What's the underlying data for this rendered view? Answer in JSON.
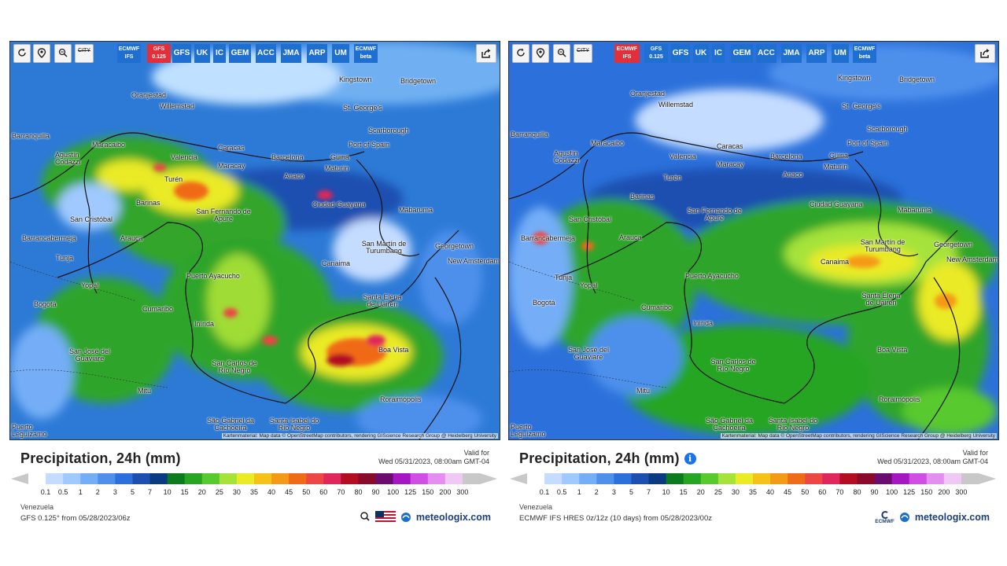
{
  "toolbar": {
    "city_label": "CITY",
    "models": [
      "ECMWF IFS",
      "GFS 0.125",
      "GFS",
      "UK",
      "IC",
      "GEM",
      "ACC",
      "JMA",
      "ARP",
      "UM",
      "ECMWF beta"
    ]
  },
  "panels": [
    {
      "active_model": "GFS 0.125",
      "title": "Precipitation, 24h (mm)",
      "valid_label": "Valid for",
      "valid_time": "Wed 05/31/2023, 08:00am GMT-04",
      "region": "Venezuela",
      "source": "GFS 0.125° from 05/28/2023/06z",
      "attribution": "Kartenmaterial: Map data © OpenStreetMap contributors, rendering GIScience Research Group @ Heidelberg University",
      "brand": "meteologix.com"
    },
    {
      "active_model": "ECMWF IFS",
      "title": "Precipitation, 24h (mm)",
      "valid_label": "Valid for",
      "valid_time": "Wed 05/31/2023, 08:00am GMT-04",
      "region": "Venezuela",
      "source": "ECMWF IFS HRES 0z/12z (10 days) from 05/28/2023/00z",
      "attribution": "Kartenmaterial: Map data © OpenStreetMap contributors, rendering GIScience Research Group @ Heidelberg University",
      "brand": "meteologix.com",
      "ecmwf_logo": "ECMWF"
    }
  ],
  "legend": {
    "ticks": [
      "0.1",
      "0.5",
      "1",
      "2",
      "3",
      "5",
      "7",
      "10",
      "15",
      "20",
      "25",
      "30",
      "35",
      "40",
      "45",
      "50",
      "60",
      "70",
      "80",
      "90",
      "100",
      "125",
      "150",
      "200",
      "300"
    ],
    "colors": [
      "#ffffff",
      "#c4dcff",
      "#9fc9ff",
      "#74aef7",
      "#4e90ec",
      "#2c71db",
      "#1b4fb0",
      "#0c3a80",
      "#0c7a1e",
      "#27a522",
      "#58c92e",
      "#a5e33a",
      "#eaea27",
      "#f5c21a",
      "#f59a16",
      "#f06b15",
      "#ee4545",
      "#e0265a",
      "#b40d22",
      "#8a0a2a",
      "#6a0d6e",
      "#a517c2",
      "#d04ee3",
      "#e38ff0",
      "#f0c8f6",
      "#c8c8c8"
    ]
  },
  "places": {
    "left": [
      "Oranjestad",
      "Willemstad",
      "Kingstown",
      "Bridgetown",
      "St. George's",
      "Scarborough",
      "Port of Spain",
      "Caracas",
      "Barcelona",
      "Güiria",
      "Maracaibo",
      "Valencia",
      "Maracay",
      "Anaco",
      "Maturín",
      "Barranquilla",
      "Agustín Codazzi",
      "Turén",
      "Barinas",
      "Ciudad Guayana",
      "San Fernando de Apure",
      "Mabaruma",
      "San Cristóbal",
      "Barrancabermeja",
      "Arauca",
      "Canaima",
      "San Martín de Turumbang",
      "Georgetown",
      "New Amsterdam",
      "Tunja",
      "Yopal",
      "Puerto Ayacucho",
      "Bogotá",
      "Cumaribo",
      "Santa Elena de Uairén",
      "Inírida",
      "Boa Vista",
      "San José del Guaviare",
      "San Carlos de Río Negro",
      "Mitú",
      "Roraimópolis",
      "São Gabriel da Cachoeira",
      "Santa Isabel do Rio Negro",
      "Puerto Leguízamo"
    ],
    "right": [
      "Oranjestad",
      "Willemstad",
      "Kingstown",
      "Bridgetown",
      "St. George's",
      "Scarborough",
      "Port of Spain",
      "Caracas",
      "Barcelona",
      "Güiria",
      "Maracaibo",
      "Valencia",
      "Maracay",
      "Anaco",
      "Maturín",
      "Barranquilla",
      "Agustín Codazzi",
      "Turén",
      "Barinas",
      "Ciudad Guayana",
      "San Fernando de Apure",
      "Mabaruma",
      "San Cristóbal",
      "Barrancabermeja",
      "Arauca",
      "Canaima",
      "San Martín de Turumbang",
      "Georgetown",
      "New Amsterdam",
      "Tunja",
      "Yopal",
      "Puerto Ayacucho",
      "Bogotá",
      "Cumaribo",
      "Santa Elena de Uairén",
      "Inírida",
      "Boa Vista",
      "San José del Guaviare",
      "San Carlos de Río Negro",
      "Mitú",
      "Roraimópolis",
      "São Gabriel da Cachoeira",
      "Santa Isabel do Rio Negro",
      "Puerto Leguízamo"
    ]
  }
}
